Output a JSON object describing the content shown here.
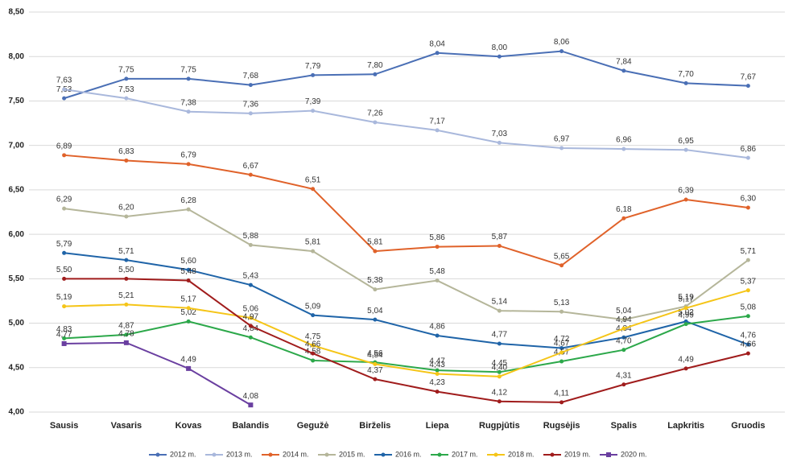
{
  "chart_data": {
    "type": "line",
    "categories": [
      "Sausis",
      "Vasaris",
      "Kovas",
      "Balandis",
      "Gegužė",
      "Birželis",
      "Liepa",
      "Rugpjūtis",
      "Rugsėjis",
      "Spalis",
      "Lapkritis",
      "Gruodis"
    ],
    "ylim": [
      4,
      8.5
    ],
    "yticks": [
      {
        "value": 4,
        "label": "4,00"
      },
      {
        "value": 4.5,
        "label": "4,50"
      },
      {
        "value": 5,
        "label": "5,00"
      },
      {
        "value": 5.5,
        "label": "5,50"
      },
      {
        "value": 6,
        "label": "6,00"
      },
      {
        "value": 6.5,
        "label": "6,50"
      },
      {
        "value": 7,
        "label": "7,00"
      },
      {
        "value": 7.5,
        "label": "7,50"
      },
      {
        "value": 8,
        "label": "8,00"
      },
      {
        "value": 8.5,
        "label": "8,50"
      }
    ],
    "grid": true,
    "legend": "bottom",
    "series": [
      {
        "name": "2012 m.",
        "color": "#4a6fb5",
        "values": [
          7.53,
          7.75,
          7.75,
          7.68,
          7.79,
          7.8,
          8.04,
          8.0,
          8.06,
          7.84,
          7.7,
          7.67
        ],
        "value_labels": [
          "7,53",
          "7,75",
          "7,75",
          "7,68",
          "7,79",
          "7,80",
          "8,04",
          "8,00",
          "8,06",
          "7,84",
          "7,70",
          "7,67"
        ]
      },
      {
        "name": "2013 m.",
        "color": "#a9b8dc",
        "values": [
          7.63,
          7.53,
          7.38,
          7.36,
          7.39,
          7.26,
          7.17,
          7.03,
          6.97,
          6.96,
          6.95,
          6.86
        ],
        "value_labels": [
          "7,63",
          "7,53",
          "7,38",
          "7,36",
          "7,39",
          "7,26",
          "7,17",
          "7,03",
          "6,97",
          "6,96",
          "6,95",
          "6,86"
        ]
      },
      {
        "name": "2014 m.",
        "color": "#e0622a",
        "values": [
          6.89,
          6.83,
          6.79,
          6.67,
          6.51,
          5.81,
          5.86,
          5.87,
          5.65,
          6.18,
          6.39,
          6.3
        ],
        "value_labels": [
          "6,89",
          "6,83",
          "6,79",
          "6,67",
          "6,51",
          "5,81",
          "5,86",
          "5,87",
          "5,65",
          "6,18",
          "6,39",
          "6,30"
        ]
      },
      {
        "name": "2015 m.",
        "color": "#b5b69a",
        "values": [
          6.29,
          6.2,
          6.28,
          5.88,
          5.81,
          5.38,
          5.48,
          5.14,
          5.13,
          5.04,
          5.19,
          5.71
        ],
        "value_labels": [
          "6,29",
          "6,20",
          "6,28",
          "5,88",
          "5,81",
          "5,38",
          "5,48",
          "5,14",
          "5,13",
          "5,04",
          "5,19",
          "5,71"
        ]
      },
      {
        "name": "2016 m.",
        "color": "#1f64a8",
        "values": [
          5.79,
          5.71,
          5.6,
          5.43,
          5.09,
          5.04,
          4.86,
          4.77,
          4.72,
          4.84,
          5.02,
          4.76
        ],
        "value_labels": [
          "5,79",
          "5,71",
          "5,60",
          "5,43",
          "5,09",
          "5,04",
          "4,86",
          "4,77",
          "4,72",
          "4,84",
          "5,02",
          "4,76"
        ]
      },
      {
        "name": "2017 m.",
        "color": "#2ca84a",
        "values": [
          4.83,
          4.87,
          5.02,
          4.84,
          4.58,
          4.56,
          4.47,
          4.45,
          4.57,
          4.7,
          4.99,
          5.08
        ],
        "value_labels": [
          "4,83",
          "4,87",
          "5,02",
          "4,84",
          "4,58",
          "4,56",
          "4,47",
          "4,45",
          "4,57",
          "4,70",
          "4,99",
          "5,08"
        ]
      },
      {
        "name": "2018 m.",
        "color": "#f5c518",
        "values": [
          5.19,
          5.21,
          5.17,
          5.06,
          4.75,
          4.54,
          4.43,
          4.4,
          4.67,
          4.94,
          5.17,
          5.37
        ],
        "value_labels": [
          "5,19",
          "5,21",
          "5,17",
          "5,06",
          "4,75",
          "4,54",
          "4,43",
          "4,40",
          "4,67",
          "4,94",
          "5,17",
          "5,37"
        ]
      },
      {
        "name": "2019 m.",
        "color": "#a01c1c",
        "values": [
          5.5,
          5.5,
          5.48,
          4.97,
          4.66,
          4.37,
          4.23,
          4.12,
          4.11,
          4.31,
          4.49,
          4.66
        ],
        "value_labels": [
          "5,50",
          "5,50",
          "5,48",
          "4,97",
          "4,66",
          "4,37",
          "4,23",
          "4,12",
          "4,11",
          "4,31",
          "4,49",
          "4,66"
        ]
      },
      {
        "name": "2020 m.",
        "color": "#6a3fa0",
        "marker": "square",
        "values": [
          4.77,
          4.78,
          4.49,
          4.08,
          null,
          null,
          null,
          null,
          null,
          null,
          null,
          null
        ],
        "value_labels": [
          "4,77",
          "4,78",
          "4,49",
          "4,08",
          null,
          null,
          null,
          null,
          null,
          null,
          null,
          null
        ]
      }
    ]
  }
}
